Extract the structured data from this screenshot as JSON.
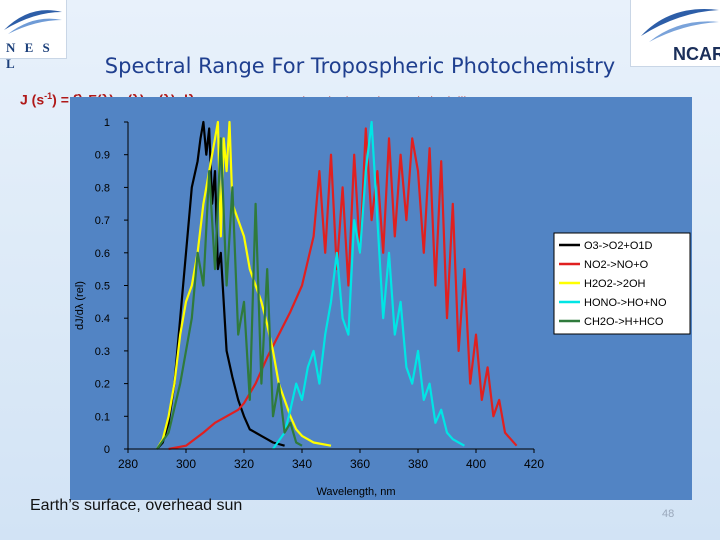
{
  "logos": {
    "left_text": "N E S L",
    "right_text": "NCAR"
  },
  "slide": {
    "title": "Spectral Range For Tropospheric Photochemistry",
    "formula_prefix": "J (s",
    "formula_exp": "-1",
    "formula_suffix": ") = ∫λ F(λ) σ(λ) φ(λ) dλ",
    "question": "- What do these integrals look like ?!?",
    "caption": "Earth’s surface, overhead sun",
    "page_number": "48"
  },
  "colors": {
    "plot_bg": "#5284c4",
    "legend_bg": "#ffffff",
    "series": [
      "#000000",
      "#e02020",
      "#ffff00",
      "#00e5e5",
      "#2f7a3c"
    ]
  },
  "chart_data": {
    "type": "line",
    "title": "",
    "xlabel": "Wavelength, nm",
    "ylabel": "dJ/dλ (rel)",
    "xlim": [
      280,
      420
    ],
    "ylim": [
      0,
      1
    ],
    "xticks": [
      "280",
      "300",
      "320",
      "340",
      "360",
      "380",
      "400",
      "420"
    ],
    "yticks": [
      "0",
      "0.1",
      "0.2",
      "0.3",
      "0.4",
      "0.5",
      "0.6",
      "0.7",
      "0.8",
      "0.9",
      "1"
    ],
    "grid": false,
    "legend_position": "right",
    "series": [
      {
        "name": "O3->O2+O1D",
        "x": [
          290,
          292,
          294,
          296,
          298,
          300,
          302,
          304,
          305,
          306,
          307,
          308,
          309,
          310,
          311,
          312,
          314,
          316,
          318,
          320,
          322,
          324,
          326,
          328,
          330,
          334
        ],
        "y": [
          0,
          0.02,
          0.08,
          0.2,
          0.4,
          0.6,
          0.8,
          0.88,
          0.95,
          1.0,
          0.9,
          0.98,
          0.75,
          0.85,
          0.55,
          0.6,
          0.3,
          0.22,
          0.15,
          0.1,
          0.06,
          0.05,
          0.04,
          0.03,
          0.02,
          0.01
        ]
      },
      {
        "name": "NO2->NO+O",
        "x": [
          294,
          300,
          306,
          310,
          314,
          318,
          320,
          324,
          328,
          332,
          336,
          340,
          344,
          346,
          348,
          350,
          352,
          354,
          356,
          358,
          360,
          362,
          364,
          366,
          368,
          370,
          372,
          374,
          376,
          378,
          380,
          382,
          384,
          386,
          388,
          390,
          392,
          394,
          396,
          398,
          400,
          402,
          404,
          406,
          408,
          410,
          412,
          414
        ],
        "y": [
          0,
          0.01,
          0.05,
          0.08,
          0.1,
          0.12,
          0.14,
          0.2,
          0.28,
          0.35,
          0.42,
          0.5,
          0.65,
          0.85,
          0.6,
          0.9,
          0.55,
          0.8,
          0.5,
          0.9,
          0.6,
          0.98,
          0.7,
          0.85,
          0.6,
          0.95,
          0.65,
          0.9,
          0.7,
          0.95,
          0.85,
          0.6,
          0.92,
          0.5,
          0.88,
          0.4,
          0.75,
          0.3,
          0.55,
          0.2,
          0.35,
          0.15,
          0.25,
          0.1,
          0.15,
          0.05,
          0.03,
          0.01
        ]
      },
      {
        "name": "H2O2->2OH",
        "x": [
          290,
          292,
          294,
          296,
          298,
          300,
          302,
          304,
          306,
          308,
          310,
          311,
          312,
          313,
          314,
          315,
          316,
          318,
          320,
          322,
          324,
          326,
          328,
          330,
          332,
          334,
          336,
          338,
          340,
          344,
          350
        ],
        "y": [
          0,
          0.03,
          0.1,
          0.2,
          0.35,
          0.45,
          0.5,
          0.6,
          0.75,
          0.85,
          0.95,
          1.0,
          0.65,
          0.95,
          0.85,
          1.0,
          0.75,
          0.7,
          0.65,
          0.55,
          0.5,
          0.45,
          0.38,
          0.3,
          0.2,
          0.15,
          0.1,
          0.06,
          0.04,
          0.02,
          0.01
        ]
      },
      {
        "name": "HONO->HO+NO",
        "x": [
          330,
          334,
          336,
          338,
          340,
          342,
          344,
          346,
          348,
          350,
          352,
          354,
          356,
          358,
          360,
          362,
          364,
          366,
          368,
          370,
          372,
          374,
          376,
          378,
          380,
          382,
          384,
          386,
          388,
          390,
          392,
          394,
          396
        ],
        "y": [
          0,
          0.05,
          0.12,
          0.2,
          0.15,
          0.25,
          0.3,
          0.2,
          0.35,
          0.45,
          0.6,
          0.4,
          0.35,
          0.7,
          0.6,
          0.85,
          1.0,
          0.7,
          0.4,
          0.6,
          0.35,
          0.45,
          0.25,
          0.2,
          0.3,
          0.15,
          0.2,
          0.08,
          0.12,
          0.05,
          0.03,
          0.02,
          0.01
        ]
      },
      {
        "name": "CH2O->H+HCO",
        "x": [
          290,
          294,
          298,
          302,
          304,
          306,
          308,
          310,
          312,
          314,
          316,
          318,
          320,
          322,
          324,
          326,
          328,
          330,
          332,
          334,
          336,
          338,
          340
        ],
        "y": [
          0,
          0.05,
          0.2,
          0.4,
          0.6,
          0.5,
          0.85,
          0.55,
          0.95,
          0.5,
          0.8,
          0.35,
          0.45,
          0.15,
          0.75,
          0.2,
          0.55,
          0.1,
          0.2,
          0.05,
          0.08,
          0.02,
          0.01
        ]
      }
    ]
  }
}
